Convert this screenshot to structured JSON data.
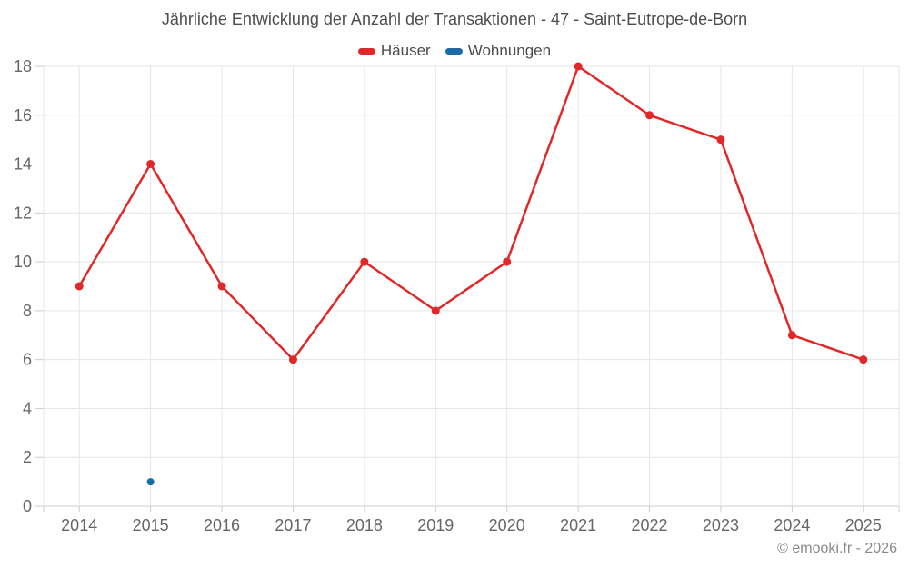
{
  "header": {
    "title": "Jährliche Entwicklung der Anzahl der Transaktionen - 47 - Saint-Eutrope-de-Born"
  },
  "footer": {
    "credit": "© emooki.fr - 2026"
  },
  "theme": {
    "background": "#ffffff",
    "grid_color": "#e6e6e6",
    "axis_line_color": "#cccccc",
    "tick_color": "#cccccc",
    "label_color": "#666666",
    "title_color": "#4d4d4d",
    "credit_color": "#8a8a8a"
  },
  "chart_data": {
    "type": "line",
    "title": "Jährliche Entwicklung der Anzahl der Transaktionen - 47 - Saint-Eutrope-de-Born",
    "xlabel": "",
    "ylabel": "",
    "categories": [
      "2014",
      "2015",
      "2016",
      "2017",
      "2018",
      "2019",
      "2020",
      "2021",
      "2022",
      "2023",
      "2024",
      "2025"
    ],
    "series": [
      {
        "name": "Häuser",
        "color": "#e02828",
        "marker_radius": 4.5,
        "line_width": 2.5,
        "values": [
          9,
          14,
          9,
          6,
          10,
          8,
          10,
          18,
          16,
          15,
          7,
          6
        ]
      },
      {
        "name": "Wohnungen",
        "color": "#1b6ba6",
        "marker_radius": 4,
        "line_width": 2.5,
        "values": [
          null,
          1,
          null,
          null,
          null,
          null,
          null,
          null,
          null,
          null,
          null,
          null
        ]
      }
    ],
    "ylim": [
      0,
      18
    ],
    "ytick_step": 2,
    "yticks": [
      0,
      2,
      4,
      6,
      8,
      10,
      12,
      14,
      16,
      18
    ],
    "grid": true,
    "legend_position": "top"
  }
}
